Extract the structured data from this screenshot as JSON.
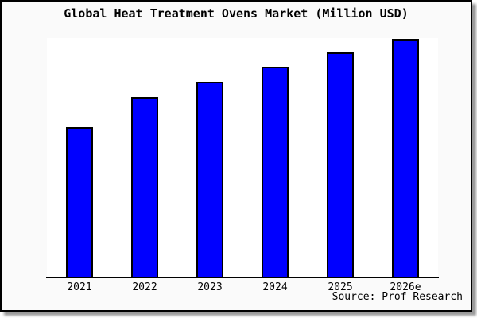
{
  "title": "Global Heat Treatment Ovens Market (Million USD)",
  "source": "Source: Prof Research",
  "colors": {
    "bar_fill": "#0000ff",
    "bar_outline": "#000000",
    "plot_background": "#ffffff",
    "frame_background": "#fafafa",
    "frame_border": "#000000",
    "shadow": "#999999",
    "text": "#000000"
  },
  "chart_data": {
    "type": "bar",
    "title": "Global Heat Treatment Ovens Market (Million USD)",
    "categories": [
      "2021",
      "2022",
      "2023",
      "2024",
      "2025",
      "2026e"
    ],
    "values": [
      188,
      226,
      245,
      264,
      282,
      299
    ],
    "value_scale": "relative bar heights in pixels; chart shows no y-axis ticks or numeric labels",
    "xlabel": "",
    "ylabel": "",
    "ylim": [
      0,
      300
    ],
    "grid": false,
    "legend_position": "none",
    "y_axis_visible": false,
    "bar_color": "#0000ff",
    "source": "Source: Prof Research"
  }
}
